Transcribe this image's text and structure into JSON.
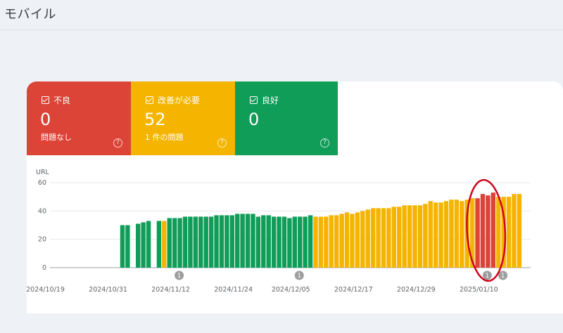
{
  "page": {
    "title": "モバイル"
  },
  "tiles": {
    "poor": {
      "label": "不良",
      "count": "0",
      "sub": "問題なし",
      "color": "#db4437"
    },
    "needs_improvement": {
      "label": "改善が必要",
      "count": "52",
      "sub": "1 件の問題",
      "color": "#f4b400"
    },
    "good": {
      "label": "良好",
      "count": "0",
      "sub": "",
      "color": "#0f9d58"
    }
  },
  "icons": {
    "checkbox": "checkbox-checked-icon",
    "help": "help-circle-icon",
    "annotation": "annotation-marker-icon"
  },
  "help_glyph": "?",
  "chart_data": {
    "type": "bar",
    "ylabel": "URL",
    "ylim": [
      0,
      60
    ],
    "yticks": [
      0,
      20,
      40,
      60
    ],
    "date_labels": [
      "2024/10/19",
      "2024/10/31",
      "2024/11/12",
      "2024/11/24",
      "2024/12/05",
      "2024/12/17",
      "2024/12/29",
      "2025/01/10"
    ],
    "first_date": "2024/10/19",
    "series_colors": {
      "good": "#0f9d58",
      "needs_improvement": "#f4b400",
      "poor": "#db4437"
    },
    "annotation_markers": [
      {
        "date": "2024/11/12",
        "label": "1"
      },
      {
        "date": "2024/12/05",
        "label": "1"
      },
      {
        "date": "2025/01/10",
        "label": "1"
      },
      {
        "date": "2025/01/13",
        "label": "1"
      }
    ],
    "highlight": {
      "color": "#d0021b"
    },
    "days": [
      {
        "date": "2024/10/19",
        "value": null,
        "status": null
      },
      {
        "date": "2024/10/20",
        "value": null,
        "status": null
      },
      {
        "date": "2024/10/21",
        "value": null,
        "status": null
      },
      {
        "date": "2024/10/22",
        "value": null,
        "status": null
      },
      {
        "date": "2024/10/23",
        "value": null,
        "status": null
      },
      {
        "date": "2024/10/24",
        "value": null,
        "status": null
      },
      {
        "date": "2024/10/25",
        "value": null,
        "status": null
      },
      {
        "date": "2024/10/26",
        "value": null,
        "status": null
      },
      {
        "date": "2024/10/27",
        "value": null,
        "status": null
      },
      {
        "date": "2024/10/28",
        "value": null,
        "status": null
      },
      {
        "date": "2024/10/29",
        "value": null,
        "status": null
      },
      {
        "date": "2024/10/30",
        "value": null,
        "status": null
      },
      {
        "date": "2024/10/31",
        "value": null,
        "status": null
      },
      {
        "date": "2024/11/01",
        "value": 30,
        "status": "good"
      },
      {
        "date": "2024/11/02",
        "value": 30,
        "status": "good"
      },
      {
        "date": "2024/11/03",
        "value": null,
        "status": null
      },
      {
        "date": "2024/11/04",
        "value": 31,
        "status": "good"
      },
      {
        "date": "2024/11/05",
        "value": 32,
        "status": "good"
      },
      {
        "date": "2024/11/06",
        "value": 33,
        "status": "good"
      },
      {
        "date": "2024/11/07",
        "value": null,
        "status": null
      },
      {
        "date": "2024/11/08",
        "value": 33,
        "status": "good"
      },
      {
        "date": "2024/11/09",
        "value": 33,
        "status": "needs_improvement"
      },
      {
        "date": "2024/11/10",
        "value": 35,
        "status": "good"
      },
      {
        "date": "2024/11/11",
        "value": 35,
        "status": "good"
      },
      {
        "date": "2024/11/12",
        "value": 35,
        "status": "good"
      },
      {
        "date": "2024/11/13",
        "value": 36,
        "status": "good"
      },
      {
        "date": "2024/11/14",
        "value": 36,
        "status": "good"
      },
      {
        "date": "2024/11/15",
        "value": 36,
        "status": "good"
      },
      {
        "date": "2024/11/16",
        "value": 36,
        "status": "good"
      },
      {
        "date": "2024/11/17",
        "value": 36,
        "status": "good"
      },
      {
        "date": "2024/11/18",
        "value": 36,
        "status": "good"
      },
      {
        "date": "2024/11/19",
        "value": 37,
        "status": "good"
      },
      {
        "date": "2024/11/20",
        "value": 37,
        "status": "good"
      },
      {
        "date": "2024/11/21",
        "value": 37,
        "status": "good"
      },
      {
        "date": "2024/11/22",
        "value": 37,
        "status": "good"
      },
      {
        "date": "2024/11/23",
        "value": 38,
        "status": "good"
      },
      {
        "date": "2024/11/24",
        "value": 38,
        "status": "good"
      },
      {
        "date": "2024/11/25",
        "value": 38,
        "status": "good"
      },
      {
        "date": "2024/11/26",
        "value": 38,
        "status": "good"
      },
      {
        "date": "2024/11/27",
        "value": 36,
        "status": "good"
      },
      {
        "date": "2024/11/28",
        "value": 37,
        "status": "good"
      },
      {
        "date": "2024/11/29",
        "value": 37,
        "status": "good"
      },
      {
        "date": "2024/11/30",
        "value": 36,
        "status": "good"
      },
      {
        "date": "2024/12/01",
        "value": 36,
        "status": "good"
      },
      {
        "date": "2024/12/02",
        "value": 36,
        "status": "good"
      },
      {
        "date": "2024/12/03",
        "value": 35,
        "status": "good"
      },
      {
        "date": "2024/12/04",
        "value": 36,
        "status": "good"
      },
      {
        "date": "2024/12/05",
        "value": 36,
        "status": "good"
      },
      {
        "date": "2024/12/06",
        "value": 36,
        "status": "good"
      },
      {
        "date": "2024/12/07",
        "value": 37,
        "status": "good"
      },
      {
        "date": "2024/12/08",
        "value": 36,
        "status": "needs_improvement"
      },
      {
        "date": "2024/12/09",
        "value": 36,
        "status": "needs_improvement"
      },
      {
        "date": "2024/12/10",
        "value": 36,
        "status": "needs_improvement"
      },
      {
        "date": "2024/12/11",
        "value": 37,
        "status": "needs_improvement"
      },
      {
        "date": "2024/12/12",
        "value": 37,
        "status": "needs_improvement"
      },
      {
        "date": "2024/12/13",
        "value": 38,
        "status": "needs_improvement"
      },
      {
        "date": "2024/12/14",
        "value": 39,
        "status": "needs_improvement"
      },
      {
        "date": "2024/12/15",
        "value": 38,
        "status": "needs_improvement"
      },
      {
        "date": "2024/12/16",
        "value": 39,
        "status": "needs_improvement"
      },
      {
        "date": "2024/12/17",
        "value": 40,
        "status": "needs_improvement"
      },
      {
        "date": "2024/12/18",
        "value": 41,
        "status": "needs_improvement"
      },
      {
        "date": "2024/12/19",
        "value": 42,
        "status": "needs_improvement"
      },
      {
        "date": "2024/12/20",
        "value": 42,
        "status": "needs_improvement"
      },
      {
        "date": "2024/12/21",
        "value": 42,
        "status": "needs_improvement"
      },
      {
        "date": "2024/12/22",
        "value": 42,
        "status": "needs_improvement"
      },
      {
        "date": "2024/12/23",
        "value": 43,
        "status": "needs_improvement"
      },
      {
        "date": "2024/12/24",
        "value": 43,
        "status": "needs_improvement"
      },
      {
        "date": "2024/12/25",
        "value": 44,
        "status": "needs_improvement"
      },
      {
        "date": "2024/12/26",
        "value": 44,
        "status": "needs_improvement"
      },
      {
        "date": "2024/12/27",
        "value": 44,
        "status": "needs_improvement"
      },
      {
        "date": "2024/12/28",
        "value": 44,
        "status": "needs_improvement"
      },
      {
        "date": "2024/12/29",
        "value": 45,
        "status": "needs_improvement"
      },
      {
        "date": "2024/12/30",
        "value": 47,
        "status": "needs_improvement"
      },
      {
        "date": "2024/12/31",
        "value": 46,
        "status": "needs_improvement"
      },
      {
        "date": "2025/01/01",
        "value": 46,
        "status": "needs_improvement"
      },
      {
        "date": "2025/01/02",
        "value": 47,
        "status": "needs_improvement"
      },
      {
        "date": "2025/01/03",
        "value": 48,
        "status": "needs_improvement"
      },
      {
        "date": "2025/01/04",
        "value": 48,
        "status": "needs_improvement"
      },
      {
        "date": "2025/01/05",
        "value": 47,
        "status": "needs_improvement"
      },
      {
        "date": "2025/01/06",
        "value": 48,
        "status": "needs_improvement"
      },
      {
        "date": "2025/01/07",
        "value": 49,
        "status": "needs_improvement"
      },
      {
        "date": "2025/01/08",
        "value": 49,
        "status": "poor"
      },
      {
        "date": "2025/01/09",
        "value": 52,
        "status": "poor"
      },
      {
        "date": "2025/01/10",
        "value": 51,
        "status": "poor"
      },
      {
        "date": "2025/01/11",
        "value": 53,
        "status": "poor"
      },
      {
        "date": "2025/01/12",
        "value": 50,
        "status": "needs_improvement"
      },
      {
        "date": "2025/01/13",
        "value": 50,
        "status": "needs_improvement"
      },
      {
        "date": "2025/01/14",
        "value": 50,
        "status": "needs_improvement"
      },
      {
        "date": "2025/01/15",
        "value": 52,
        "status": "needs_improvement"
      },
      {
        "date": "2025/01/16",
        "value": 52,
        "status": "needs_improvement"
      }
    ]
  }
}
